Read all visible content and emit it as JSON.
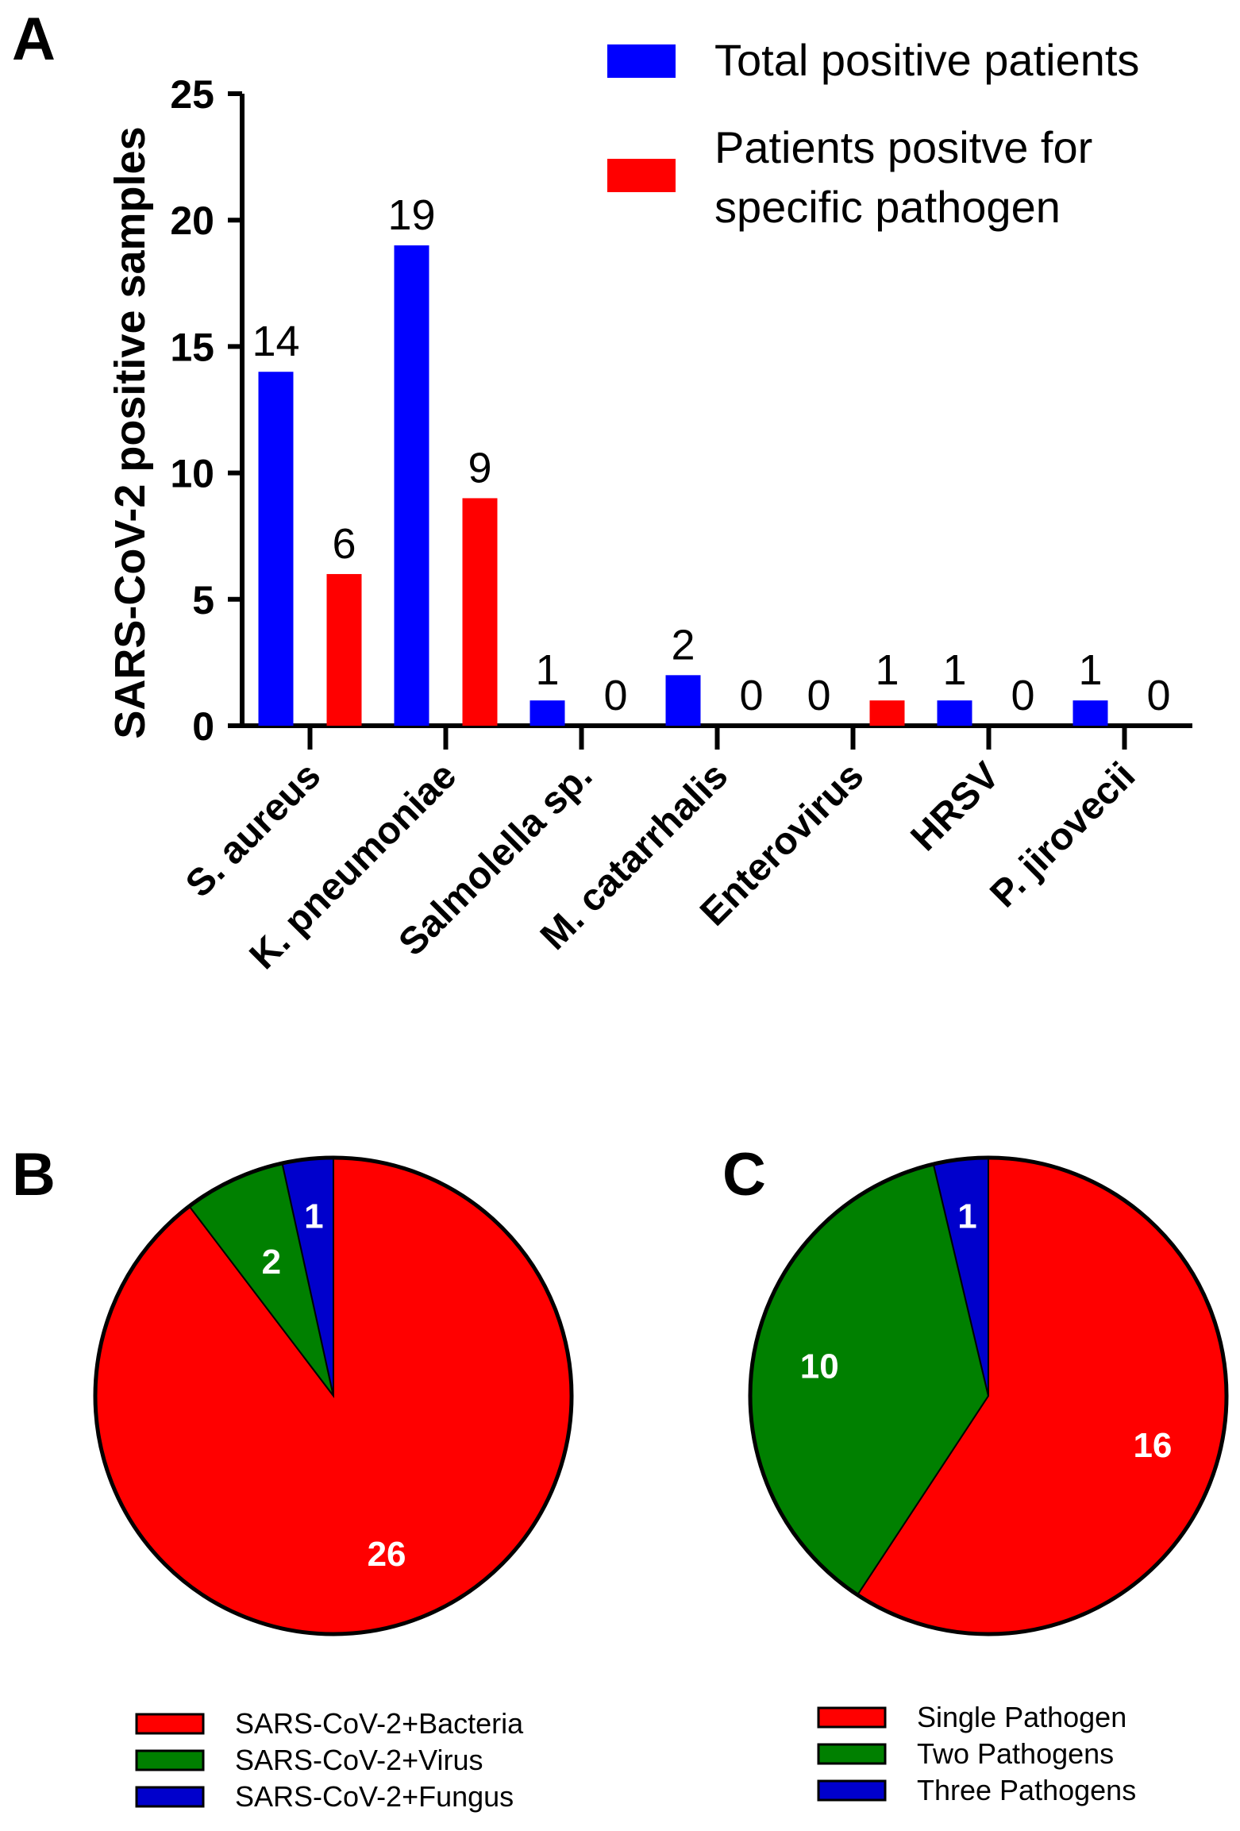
{
  "panels": {
    "a": "A",
    "b": "B",
    "c": "C"
  },
  "colors": {
    "total": "#0000ff",
    "specific": "#ff0000",
    "red": "#ff0000",
    "green": "#008000",
    "blue": "#0000cc"
  },
  "chart_data": [
    {
      "type": "bar",
      "panel": "A",
      "title": "",
      "xlabel": "",
      "ylabel": "SARS-CoV-2 positive samples",
      "ylim": [
        0,
        25
      ],
      "yticks": [
        0,
        5,
        10,
        15,
        20,
        25
      ],
      "categories": [
        "S. aureus",
        "K. pneumoniae",
        "Salmolella sp.",
        "M. catarrhalis",
        "Enterovirus",
        "HRSV",
        "P. jirovecii"
      ],
      "series": [
        {
          "name": "Total positive patients",
          "values": [
            14,
            19,
            1,
            2,
            0,
            1,
            1
          ]
        },
        {
          "name": "Patients positve for specific pathogen",
          "values": [
            6,
            9,
            0,
            0,
            1,
            0,
            0
          ]
        }
      ],
      "legend": [
        {
          "lines": [
            "Total positive patients"
          ]
        },
        {
          "lines": [
            "Patients positve for",
            "specific pathogen"
          ]
        }
      ],
      "legend_position": "top-right"
    },
    {
      "type": "pie",
      "panel": "B",
      "slices": [
        {
          "label": "SARS-CoV-2+Bacteria",
          "value": 26
        },
        {
          "label": "SARS-CoV-2+Virus",
          "value": 2
        },
        {
          "label": "SARS-CoV-2+Fungus",
          "value": 1
        }
      ],
      "legend_position": "bottom"
    },
    {
      "type": "pie",
      "panel": "C",
      "slices": [
        {
          "label": "Single Pathogen",
          "value": 16
        },
        {
          "label": "Two Pathogens",
          "value": 10
        },
        {
          "label": "Three Pathogens",
          "value": 1
        }
      ],
      "legend_position": "bottom"
    }
  ]
}
